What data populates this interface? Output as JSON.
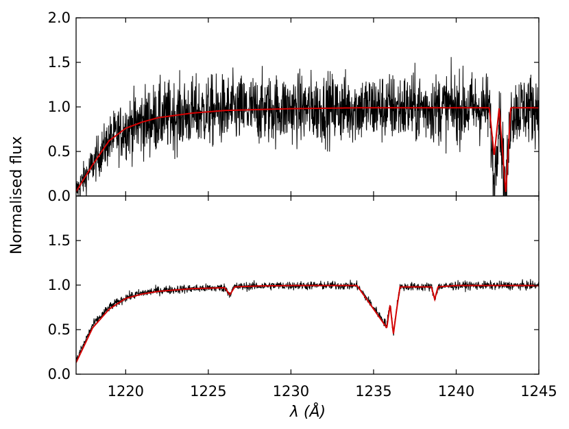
{
  "chart_data": {
    "type": "line",
    "shared_x": {
      "label": "λ (Å)",
      "range": [
        1217,
        1245
      ],
      "ticks": [
        1220,
        1225,
        1230,
        1235,
        1240,
        1245
      ],
      "tick_labels": [
        "1220",
        "1225",
        "1230",
        "1235",
        "1240",
        "1245"
      ]
    },
    "shared_y_label": "Normalised flux",
    "colors": {
      "observed": "#000000",
      "model": "#d40000"
    },
    "panels": [
      {
        "ylim": [
          0.0,
          2.0
        ],
        "yticks": [
          0.0,
          0.5,
          1.0,
          1.5,
          2.0
        ],
        "ytick_labels": [
          "0.0",
          "0.5",
          "1.0",
          "1.5",
          "2.0"
        ],
        "series": [
          {
            "x": [
              1217,
              1218,
              1219,
              1220,
              1221,
              1222,
              1224,
              1226,
              1228,
              1230,
              1232,
              1234,
              1236,
              1238,
              1240,
              1242,
              1242.3,
              1242.6,
              1243.0,
              1243.3,
              1244,
              1245
            ],
            "values": [
              0.05,
              0.35,
              0.62,
              0.76,
              0.83,
              0.88,
              0.93,
              0.96,
              0.97,
              0.98,
              0.985,
              0.99,
              0.99,
              0.99,
              0.99,
              0.99,
              0.1,
              0.97,
              0.0,
              0.95,
              0.99,
              0.99
            ]
          },
          {
            "x": [
              1217,
              1218,
              1219,
              1220,
              1221,
              1222,
              1224,
              1226,
              1228,
              1230,
              1232,
              1234,
              1236,
              1238,
              1240,
              1242,
              1242.3,
              1242.6,
              1243.0,
              1243.3,
              1244,
              1245
            ],
            "values": [
              0.05,
              0.35,
              0.62,
              0.76,
              0.83,
              0.88,
              0.93,
              0.96,
              0.97,
              0.98,
              0.985,
              0.99,
              0.99,
              0.99,
              0.99,
              0.99,
              0.45,
              0.99,
              0.03,
              0.99,
              0.99,
              0.99
            ]
          }
        ]
      },
      {
        "ylim": [
          0.0,
          2.0
        ],
        "yticks": [
          0.0,
          0.5,
          1.0,
          1.5
        ],
        "ytick_labels": [
          "0.0",
          "0.5",
          "1.0",
          "1.5"
        ],
        "series": [
          {
            "x": [
              1217,
              1218,
              1219,
              1220,
              1221,
              1222,
              1224,
              1226,
              1226.3,
              1226.6,
              1228,
              1230,
              1232,
              1234,
              1235.8,
              1236.0,
              1236.2,
              1236.4,
              1236.6,
              1238.5,
              1238.7,
              1238.9,
              1240,
              1242,
              1245
            ],
            "values": [
              0.15,
              0.55,
              0.75,
              0.86,
              0.91,
              0.94,
              0.96,
              0.97,
              0.9,
              0.98,
              0.99,
              0.995,
              0.995,
              0.995,
              0.55,
              0.8,
              0.45,
              0.75,
              0.98,
              0.98,
              0.84,
              0.98,
              0.995,
              0.995,
              0.995
            ]
          },
          {
            "x": [
              1217,
              1218,
              1219,
              1220,
              1221,
              1222,
              1224,
              1226,
              1226.3,
              1226.6,
              1228,
              1230,
              1232,
              1234,
              1235.8,
              1236.0,
              1236.2,
              1236.4,
              1236.6,
              1238.5,
              1238.7,
              1238.9,
              1240,
              1242,
              1245
            ],
            "values": [
              0.13,
              0.52,
              0.73,
              0.85,
              0.9,
              0.93,
              0.96,
              0.97,
              0.89,
              0.98,
              0.99,
              0.995,
              0.995,
              0.995,
              0.52,
              0.78,
              0.45,
              0.73,
              0.98,
              0.98,
              0.84,
              0.98,
              0.995,
              0.995,
              0.995
            ]
          }
        ]
      }
    ]
  }
}
